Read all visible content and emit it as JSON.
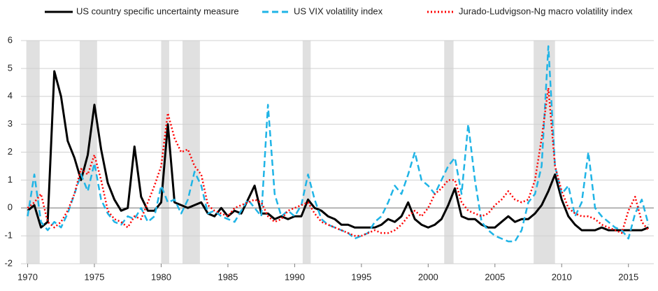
{
  "chart_data": {
    "type": "line",
    "x": [
      1970.0,
      1970.5,
      1971.0,
      1971.5,
      1972.0,
      1972.5,
      1973.0,
      1973.5,
      1974.0,
      1974.5,
      1975.0,
      1975.5,
      1976.0,
      1976.5,
      1977.0,
      1977.5,
      1978.0,
      1978.5,
      1979.0,
      1979.5,
      1980.0,
      1980.5,
      1981.0,
      1981.5,
      1982.0,
      1982.5,
      1983.0,
      1983.5,
      1984.0,
      1984.5,
      1985.0,
      1985.5,
      1986.0,
      1986.5,
      1987.0,
      1987.5,
      1988.0,
      1988.5,
      1989.0,
      1989.5,
      1990.0,
      1990.5,
      1991.0,
      1991.5,
      1992.0,
      1992.5,
      1993.0,
      1993.5,
      1994.0,
      1994.5,
      1995.0,
      1995.5,
      1996.0,
      1996.5,
      1997.0,
      1997.5,
      1998.0,
      1998.5,
      1999.0,
      1999.5,
      2000.0,
      2000.5,
      2001.0,
      2001.5,
      2002.0,
      2002.5,
      2003.0,
      2003.5,
      2004.0,
      2004.5,
      2005.0,
      2005.5,
      2006.0,
      2006.5,
      2007.0,
      2007.5,
      2008.0,
      2008.5,
      2009.0,
      2009.5,
      2010.0,
      2010.5,
      2011.0,
      2011.5,
      2012.0,
      2012.5,
      2013.0,
      2013.5,
      2014.0,
      2014.5,
      2015.0,
      2015.5,
      2016.0,
      2016.5
    ],
    "series": [
      {
        "name": "US country specific uncertainty measure",
        "color": "#000000",
        "dash": "solid",
        "values": [
          -0.1,
          0.1,
          -0.7,
          -0.5,
          4.9,
          4.0,
          2.4,
          1.8,
          1.0,
          1.9,
          3.7,
          2.1,
          0.9,
          0.3,
          -0.1,
          0.0,
          2.2,
          0.4,
          -0.1,
          -0.1,
          0.2,
          3.0,
          0.2,
          0.1,
          0.0,
          0.1,
          0.2,
          -0.2,
          -0.3,
          0.0,
          -0.3,
          -0.1,
          -0.2,
          0.3,
          0.8,
          -0.2,
          -0.2,
          -0.4,
          -0.3,
          -0.4,
          -0.3,
          -0.3,
          0.3,
          0.0,
          -0.1,
          -0.3,
          -0.4,
          -0.6,
          -0.6,
          -0.7,
          -0.7,
          -0.7,
          -0.7,
          -0.6,
          -0.4,
          -0.5,
          -0.3,
          0.2,
          -0.4,
          -0.6,
          -0.7,
          -0.6,
          -0.4,
          0.1,
          0.7,
          -0.3,
          -0.4,
          -0.4,
          -0.6,
          -0.7,
          -0.7,
          -0.5,
          -0.3,
          -0.5,
          -0.4,
          -0.4,
          -0.2,
          0.1,
          0.6,
          1.2,
          0.3,
          -0.3,
          -0.6,
          -0.8,
          -0.8,
          -0.8,
          -0.7,
          -0.8,
          -0.8,
          -0.8,
          -0.8,
          -0.8,
          -0.8,
          -0.7
        ]
      },
      {
        "name": "US VIX volatility index",
        "color": "#1fb4e6",
        "dash": "dashed",
        "values": [
          -0.3,
          1.2,
          -0.5,
          -0.8,
          -0.5,
          -0.7,
          -0.2,
          0.5,
          1.2,
          0.6,
          1.6,
          0.3,
          -0.2,
          -0.5,
          -0.6,
          -0.3,
          -0.4,
          0.0,
          -0.5,
          -0.3,
          0.8,
          0.2,
          0.3,
          -0.2,
          0.3,
          1.3,
          0.8,
          -0.2,
          -0.1,
          -0.3,
          -0.4,
          -0.5,
          -0.1,
          0.3,
          0.0,
          -0.3,
          3.7,
          0.5,
          -0.3,
          -0.1,
          -0.3,
          0.1,
          1.2,
          0.3,
          -0.4,
          -0.6,
          -0.7,
          -0.8,
          -0.9,
          -1.1,
          -1.0,
          -0.9,
          -0.5,
          -0.3,
          0.2,
          0.8,
          0.5,
          1.2,
          2.0,
          1.0,
          0.8,
          0.5,
          1.0,
          1.5,
          1.8,
          0.5,
          3.0,
          1.0,
          -0.5,
          -0.8,
          -1.0,
          -1.1,
          -1.2,
          -1.2,
          -0.8,
          0.2,
          0.5,
          1.5,
          5.8,
          1.5,
          0.5,
          0.8,
          -0.3,
          0.2,
          2.0,
          0.0,
          -0.3,
          -0.5,
          -0.7,
          -0.8,
          -1.1,
          -0.2,
          0.3,
          -0.6
        ]
      },
      {
        "name": "Jurado-Ludvigson-Ng macro volatility index",
        "color": "#ff0000",
        "dash": "dotted",
        "values": [
          0.0,
          0.2,
          0.5,
          -0.5,
          -0.7,
          -0.5,
          -0.1,
          0.5,
          1.4,
          1.2,
          1.9,
          1.0,
          -0.1,
          -0.4,
          -0.5,
          -0.7,
          -0.3,
          -0.4,
          0.2,
          0.8,
          1.5,
          3.4,
          2.5,
          2.0,
          2.1,
          1.5,
          1.2,
          0.1,
          -0.1,
          -0.2,
          -0.3,
          0.0,
          0.1,
          0.2,
          0.3,
          0.2,
          -0.3,
          -0.5,
          -0.4,
          -0.1,
          0.0,
          0.1,
          0.2,
          -0.2,
          -0.5,
          -0.6,
          -0.7,
          -0.8,
          -0.9,
          -1.0,
          -1.0,
          -0.9,
          -0.8,
          -0.9,
          -0.9,
          -0.8,
          -0.6,
          -0.3,
          -0.1,
          -0.3,
          0.0,
          0.5,
          0.7,
          1.0,
          1.0,
          0.2,
          -0.1,
          -0.2,
          -0.3,
          -0.2,
          0.1,
          0.3,
          0.6,
          0.3,
          0.2,
          0.3,
          1.0,
          2.5,
          4.3,
          1.5,
          0.6,
          0.0,
          -0.2,
          -0.3,
          -0.3,
          -0.4,
          -0.6,
          -0.7,
          -0.8,
          -0.9,
          -0.1,
          0.4,
          -0.5,
          -0.8
        ]
      }
    ],
    "recessions": [
      [
        1969.9,
        1970.9
      ],
      [
        1973.9,
        1975.2
      ],
      [
        1980.0,
        1980.6
      ],
      [
        1981.6,
        1982.9
      ],
      [
        1990.6,
        1991.2
      ],
      [
        2001.2,
        2001.9
      ],
      [
        2007.9,
        2009.5
      ]
    ],
    "recession_color": "#e0e0e0",
    "xlim": [
      1969.5,
      2016.9
    ],
    "xticks": [
      1970,
      1975,
      1980,
      1985,
      1990,
      1995,
      2000,
      2005,
      2010,
      2015
    ],
    "ylim": [
      -2,
      6
    ],
    "yticks": [
      -2,
      -1,
      0,
      1,
      2,
      3,
      4,
      5,
      6
    ],
    "grid": true,
    "legend": "top"
  }
}
